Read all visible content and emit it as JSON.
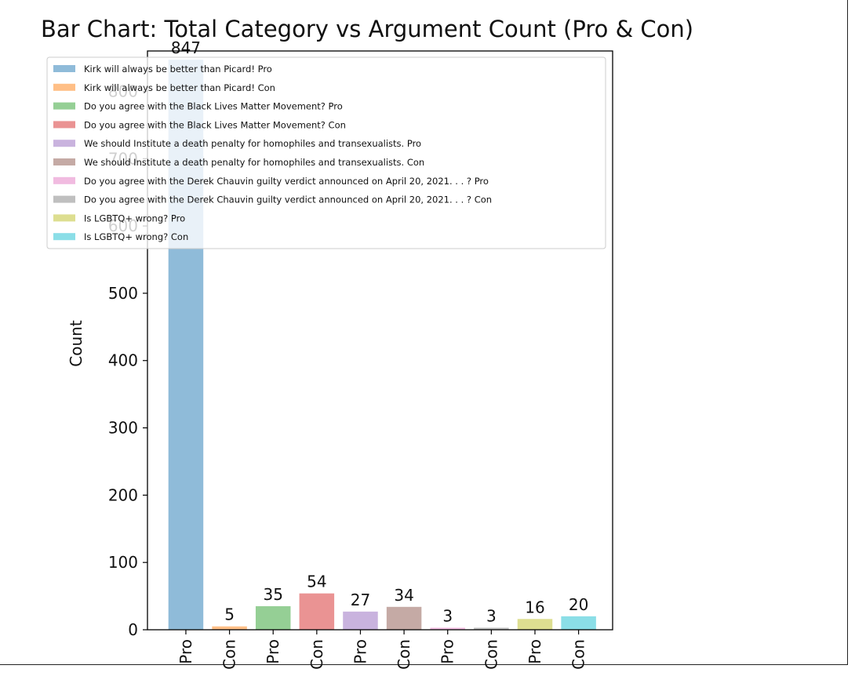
{
  "chart_data": {
    "type": "bar",
    "title": "Bar Chart: Total Category vs Argument Count (Pro & Con)",
    "xlabel": "",
    "ylabel": "Count",
    "ylim": [
      0,
      860
    ],
    "yticks": [
      0,
      100,
      200,
      300,
      400,
      500,
      600,
      700,
      800
    ],
    "categories": [
      "Pro",
      "Con",
      "Pro",
      "Con",
      "Pro",
      "Con",
      "Pro",
      "Con",
      "Pro",
      "Con"
    ],
    "values": [
      847,
      5,
      35,
      54,
      27,
      34,
      3,
      3,
      16,
      20
    ],
    "data_labels": [
      "847",
      "5",
      "35",
      "54",
      "27",
      "34",
      "3",
      "3",
      "16",
      "20"
    ],
    "series": [
      {
        "name": "Kirk will always be better than Picard! Pro",
        "color": "#1f77b4"
      },
      {
        "name": "Kirk will always be better than Picard! Con",
        "color": "#ff7f0e"
      },
      {
        "name": "Do you agree with the Black Lives Matter Movement? Pro",
        "color": "#2ca02c"
      },
      {
        "name": "Do you agree with the Black Lives Matter Movement? Con",
        "color": "#d62728"
      },
      {
        "name": "We should Institute a death penalty for homophiles and transexualists. Pro",
        "color": "#9467bd"
      },
      {
        "name": "We should Institute a death penalty for homophiles and transexualists. Con",
        "color": "#8c564b"
      },
      {
        "name": "Do you agree with the Derek Chauvin guilty verdict announced on April 20, 2021. . . ? Pro",
        "color": "#e377c2"
      },
      {
        "name": "Do you agree with the Derek Chauvin guilty verdict announced on April 20, 2021. . . ? Con",
        "color": "#7f7f7f"
      },
      {
        "name": "Is LGBTQ+ wrong? Pro",
        "color": "#bcbd22"
      },
      {
        "name": "Is LGBTQ+ wrong? Con",
        "color": "#17becf"
      }
    ],
    "bar_alpha": 0.5,
    "grid": false,
    "legend_position": "top-left"
  }
}
